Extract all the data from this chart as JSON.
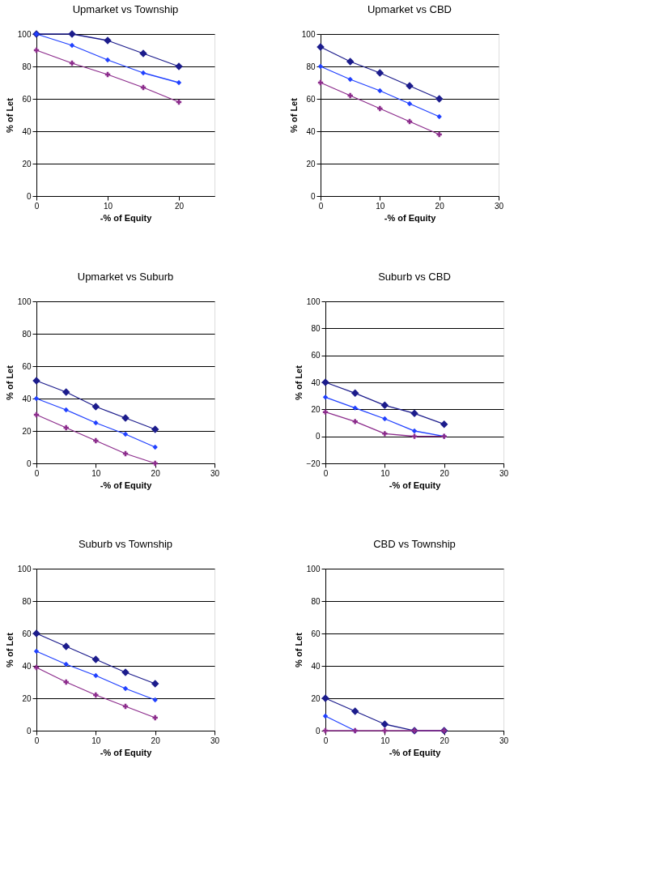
{
  "chart_data": [
    {
      "type": "line",
      "title": "Upmarket vs Township",
      "xlabel": "-% of Equity",
      "ylabel": "% of Let",
      "x": [
        0,
        5,
        10,
        15,
        20
      ],
      "xlim": [
        0,
        25
      ],
      "xticks": [
        0,
        10,
        20
      ],
      "ylim": [
        0,
        100
      ],
      "yticks": [
        0,
        20,
        40,
        60,
        80,
        100
      ],
      "grid": "y",
      "marker": "diamond",
      "line_style": "solid",
      "series": [
        {
          "color": "#1c1c8c",
          "values": [
            100,
            100,
            96,
            88,
            80
          ]
        },
        {
          "color": "#2040ff",
          "values": [
            100,
            93,
            84,
            76,
            70
          ]
        },
        {
          "color": "#8c2c8c",
          "marker": "cross",
          "values": [
            90,
            82,
            75,
            67,
            58
          ]
        }
      ]
    },
    {
      "type": "line",
      "title": "Upmarket vs CBD",
      "xlabel": "-% of Equity",
      "ylabel": "% of Let",
      "x": [
        0,
        5,
        10,
        15,
        20
      ],
      "xlim": [
        0,
        30
      ],
      "xticks": [
        0,
        10,
        20,
        30
      ],
      "ylim": [
        0,
        100
      ],
      "yticks": [
        0,
        20,
        40,
        60,
        80,
        100
      ],
      "grid": "y",
      "marker": "diamond",
      "line_style": "solid",
      "series": [
        {
          "color": "#1c1c8c",
          "values": [
            92,
            83,
            76,
            68,
            60
          ]
        },
        {
          "color": "#2040ff",
          "values": [
            80,
            72,
            65,
            57,
            49
          ]
        },
        {
          "color": "#8c2c8c",
          "marker": "cross",
          "values": [
            70,
            62,
            54,
            46,
            38
          ]
        }
      ]
    },
    {
      "type": "line",
      "title": "Upmarket vs Suburb",
      "xlabel": "-% of Equity",
      "ylabel": "% of Let",
      "x": [
        0,
        5,
        10,
        15,
        20
      ],
      "xlim": [
        0,
        30
      ],
      "xticks": [
        0,
        10,
        20,
        30
      ],
      "ylim": [
        0,
        100
      ],
      "yticks": [
        0,
        20,
        40,
        60,
        80,
        100
      ],
      "grid": "y",
      "marker": "diamond",
      "line_style": "solid",
      "series": [
        {
          "color": "#1c1c8c",
          "values": [
            51,
            44,
            35,
            28,
            21
          ]
        },
        {
          "color": "#2040ff",
          "values": [
            40,
            33,
            25,
            18,
            10
          ]
        },
        {
          "color": "#8c2c8c",
          "marker": "cross",
          "values": [
            30,
            22,
            14,
            6,
            0
          ]
        }
      ]
    },
    {
      "type": "line",
      "title": "Suburb vs CBD",
      "xlabel": "-% of Equity",
      "ylabel": "% of Let",
      "x": [
        0,
        5,
        10,
        15,
        20
      ],
      "xlim": [
        0,
        30
      ],
      "xticks": [
        0,
        10,
        20,
        30
      ],
      "ylim": [
        -20,
        100
      ],
      "yticks": [
        -20,
        0,
        20,
        40,
        60,
        80,
        100
      ],
      "grid": "y",
      "marker": "diamond",
      "line_style": "solid",
      "series": [
        {
          "color": "#1c1c8c",
          "values": [
            40,
            32,
            23,
            17,
            9
          ]
        },
        {
          "color": "#2040ff",
          "values": [
            29,
            21,
            13,
            4,
            0
          ]
        },
        {
          "color": "#8c2c8c",
          "marker": "cross",
          "values": [
            18,
            11,
            2,
            0,
            0
          ]
        }
      ]
    },
    {
      "type": "line",
      "title": "Suburb vs Township",
      "xlabel": "-% of Equity",
      "ylabel": "% of Let",
      "x": [
        0,
        5,
        10,
        15,
        20
      ],
      "xlim": [
        0,
        30
      ],
      "xticks": [
        0,
        10,
        20,
        30
      ],
      "ylim": [
        0,
        100
      ],
      "yticks": [
        0,
        20,
        40,
        60,
        80,
        100
      ],
      "grid": "y",
      "marker": "diamond",
      "line_style": "solid",
      "series": [
        {
          "color": "#1c1c8c",
          "values": [
            60,
            52,
            44,
            36,
            29
          ]
        },
        {
          "color": "#2040ff",
          "values": [
            49,
            41,
            34,
            26,
            19
          ]
        },
        {
          "color": "#8c2c8c",
          "marker": "cross",
          "values": [
            39,
            30,
            22,
            15,
            8
          ]
        }
      ]
    },
    {
      "type": "line",
      "title": "CBD vs Township",
      "xlabel": "-% of Equity",
      "ylabel": "% of Let",
      "x": [
        0,
        5,
        10,
        15,
        20
      ],
      "xlim": [
        0,
        30
      ],
      "xticks": [
        0,
        10,
        20,
        30
      ],
      "ylim": [
        0,
        100
      ],
      "yticks": [
        0,
        20,
        40,
        60,
        80,
        100
      ],
      "grid": "y",
      "marker": "diamond",
      "line_style": "solid",
      "series": [
        {
          "color": "#1c1c8c",
          "values": [
            20,
            12,
            4,
            0,
            0
          ]
        },
        {
          "color": "#2040ff",
          "values": [
            9,
            0,
            null,
            null,
            null
          ]
        },
        {
          "color": "#8c2c8c",
          "marker": "cross",
          "values": [
            0,
            0,
            0,
            0,
            0
          ]
        }
      ]
    }
  ]
}
